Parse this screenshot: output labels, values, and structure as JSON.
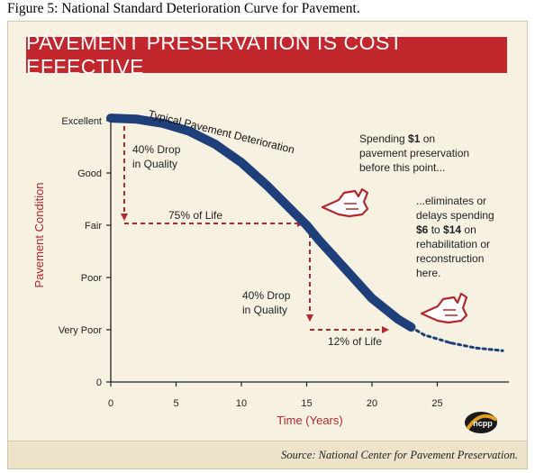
{
  "figure_caption": "Figure 5: National Standard Deterioration Curve for Pavement.",
  "banner_title": "PAVEMENT PRESERVATION IS COST EFFECTIVE",
  "source_text": "Source: National Center for Pavement Preservation.",
  "logo_text": "ncpp",
  "colors": {
    "banner": "#c1272d",
    "curve": "#1f3f7a",
    "dashed": "#b0282e",
    "panel": "#f6f1e1",
    "axis_title": "#b0282e"
  },
  "annotations": {
    "curve_label": "Typical Pavement Deterioration",
    "drop1_line1": "40% Drop",
    "drop1_line2": "in Quality",
    "life75": "75% of Life",
    "drop2_line1": "40% Drop",
    "drop2_line2": "in Quality",
    "life12": "12% of Life",
    "spend1_a": "Spending ",
    "spend1_b": "$1",
    "spend1_c": " on",
    "spend2": "pavement preservation",
    "spend3": "before this point...",
    "elim1": "...eliminates or",
    "elim2": "delays spending",
    "elim3_a": "$6",
    "elim3_b": " to ",
    "elim3_c": "$14",
    "elim3_d": " on",
    "elim4": "rehabilitation or",
    "elim5": "reconstruction",
    "elim6": "here."
  },
  "chart_data": {
    "type": "line",
    "title": "PAVEMENT PRESERVATION IS COST EFFECTIVE",
    "xlabel": "Time (Years)",
    "ylabel": "Pavement Condition",
    "xlim": [
      0,
      30
    ],
    "ylim": [
      0,
      5
    ],
    "x_ticks": [
      0,
      5,
      10,
      15,
      20,
      25
    ],
    "y_ticks": [
      {
        "value": 0,
        "label": "0"
      },
      {
        "value": 1,
        "label": "Very Poor"
      },
      {
        "value": 2,
        "label": "Poor"
      },
      {
        "value": 3,
        "label": "Fair"
      },
      {
        "value": 4,
        "label": "Good"
      },
      {
        "value": 5,
        "label": "Excellent"
      }
    ],
    "grid": false,
    "series": [
      {
        "name": "Typical Pavement Deterioration",
        "x": [
          0,
          2,
          4,
          6,
          8,
          10,
          12,
          14,
          15,
          16,
          18,
          20,
          22,
          23,
          24,
          26,
          28,
          30
        ],
        "y": [
          5.05,
          5.03,
          4.95,
          4.8,
          4.55,
          4.2,
          3.75,
          3.25,
          3.0,
          2.7,
          2.15,
          1.6,
          1.2,
          1.05,
          0.9,
          0.75,
          0.65,
          0.6
        ]
      }
    ],
    "annotations": [
      {
        "text": "40% Drop in Quality",
        "x": 1,
        "y_from": 5,
        "y_to": 3
      },
      {
        "text": "75% of Life",
        "x_from": 1,
        "x_to": 15,
        "y": 3
      },
      {
        "text": "40% Drop in Quality",
        "x": 15,
        "y_from": 3,
        "y_to": 1
      },
      {
        "text": "12% of Life",
        "x_from": 15,
        "x_to": 19,
        "y": 1
      }
    ]
  }
}
